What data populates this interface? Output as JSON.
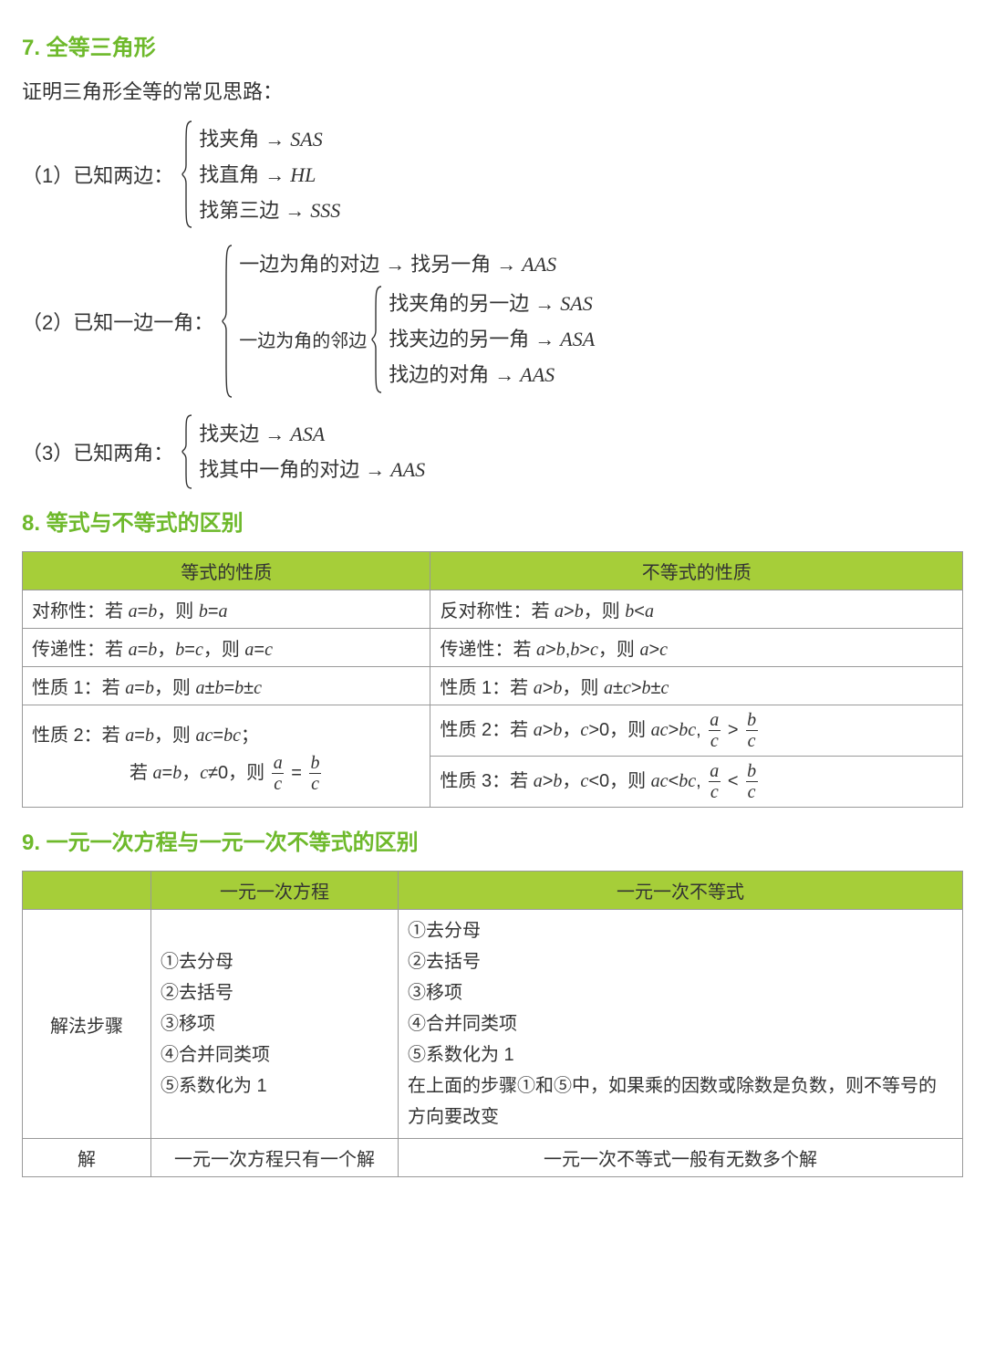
{
  "colors": {
    "accent": "#6eb92b",
    "table_header_bg": "#a6ce39",
    "border": "#999999",
    "text": "#333333",
    "bg": "#ffffff"
  },
  "sec7": {
    "title": "7. 全等三角形",
    "intro": "证明三角形全等的常见思路：",
    "case1": {
      "label": "（1）已知两边：",
      "opts": [
        {
          "find": "找夹角",
          "result": "SAS"
        },
        {
          "find": "找直角",
          "result": "HL"
        },
        {
          "find": "找第三边",
          "result": "SSS"
        }
      ]
    },
    "case2": {
      "label": "（2）已知一边一角：",
      "opt1": {
        "find": "一边为角的对边",
        "then": "找另一角",
        "result": "AAS"
      },
      "opt2_label": "一边为角的邻边",
      "opt2_sub": [
        {
          "find": "找夹角的另一边",
          "result": "SAS"
        },
        {
          "find": "找夹边的另一角",
          "result": "ASA"
        },
        {
          "find": "找边的对角",
          "result": "AAS"
        }
      ]
    },
    "case3": {
      "label": "（3）已知两角：",
      "opts": [
        {
          "find": "找夹边",
          "result": "ASA"
        },
        {
          "find": "找其中一角的对边",
          "result": "AAS"
        }
      ]
    }
  },
  "sec8": {
    "title": "8. 等式与不等式的区别",
    "headers": [
      "等式的性质",
      "不等式的性质"
    ],
    "rows": {
      "r1": {
        "eq": "对称性：若 a=b，则 b=a",
        "ineq": "反对称性：若 a>b，则 b<a"
      },
      "r2": {
        "eq": "传递性：若 a=b，b=c，则 a=c",
        "ineq": "传递性：若 a>b,b>c，则 a>c"
      },
      "r3": {
        "eq": "性质 1：若 a=b，则 a±b=b±c",
        "ineq": "性质 1：若 a>b，则 a±c>b±c"
      },
      "r4eq_line1": "性质 2：若 a=b，则 ac=bc；",
      "r4eq_line2_pre": "若 a=b，c≠0，则 ",
      "r4ineq2_pre": "性质 2：若 a>b，c>0，则 ac>bc, ",
      "r4ineq3_pre": "性质 3：若 a>b，c<0，则 ac<bc, ",
      "frac": {
        "a": "a",
        "b": "b",
        "c": "c",
        "eq": "=",
        "gt": ">",
        "lt": "<"
      }
    }
  },
  "sec9": {
    "title": "9. 一元一次方程与一元一次不等式的区别",
    "headers": [
      "",
      "一元一次方程",
      "一元一次不等式"
    ],
    "row1_label": "解法步骤",
    "eq_steps": [
      "①去分母",
      "②去括号",
      "③移项",
      "④合并同类项",
      "⑤系数化为 1"
    ],
    "ineq_steps": [
      "①去分母",
      "②去括号",
      "③移项",
      "④合并同类项",
      "⑤系数化为 1",
      "在上面的步骤①和⑤中，如果乘的因数或除数是负数，则不等号的方向要改变"
    ],
    "row2_label": "解",
    "eq_sol": "一元一次方程只有一个解",
    "ineq_sol": "一元一次不等式一般有无数多个解"
  }
}
